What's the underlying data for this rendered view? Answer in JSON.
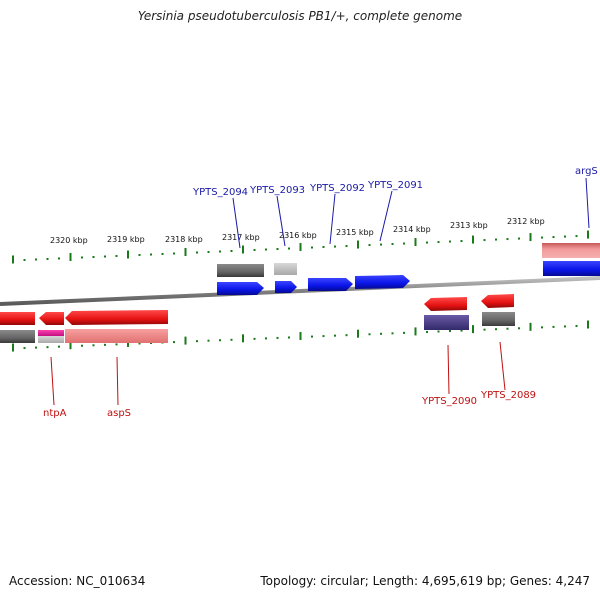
{
  "title": "Yersinia pseudotuberculosis PB1/+, complete genome",
  "footer": {
    "accession": "Accession: NC_010634",
    "summary": "Topology: circular; Length: 4,695,619 bp; Genes: 4,247"
  },
  "colors": {
    "forward_gene": "#0a14e6",
    "reverse_gene": "#e61212",
    "backbone": "#808080",
    "tick": "#1a7a1a",
    "label_top": "#1a1aa8",
    "label_bottom": "#c01010"
  },
  "scale_labels": [
    "2320 kbp",
    "2319 kbp",
    "2318 kbp",
    "2317 kbp",
    "2316 kbp",
    "2315 kbp",
    "2314 kbp",
    "2313 kbp",
    "2312 kbp"
  ],
  "top_gene_labels": [
    "YPTS_2094",
    "YPTS_2093",
    "YPTS_2092",
    "YPTS_2091",
    "argS"
  ],
  "bottom_gene_labels": [
    "ntpA",
    "aspS",
    "YPTS_2090",
    "YPTS_2089"
  ]
}
